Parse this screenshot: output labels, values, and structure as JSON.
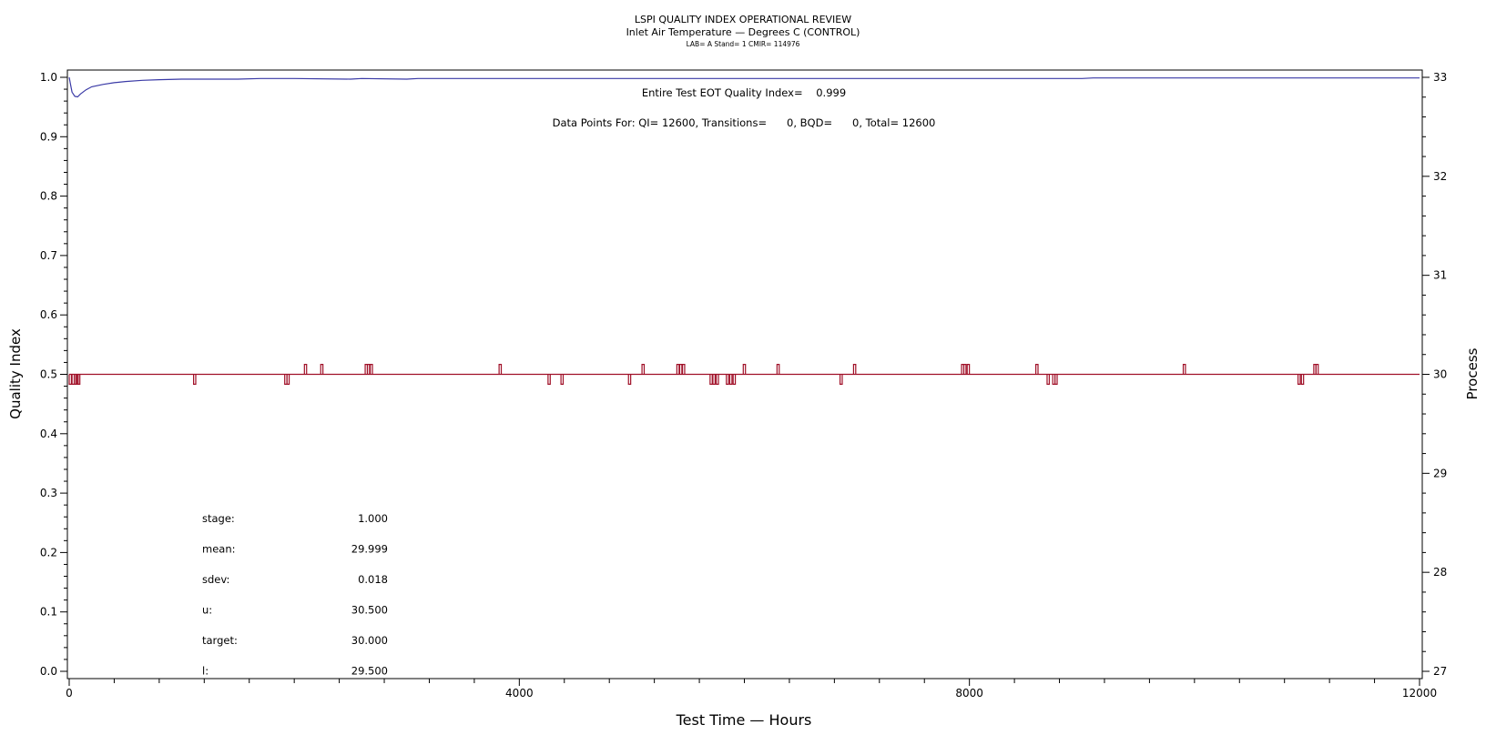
{
  "header": {
    "title": "LSPI QUALITY INDEX OPERATIONAL REVIEW",
    "subtitle": "Inlet Air Temperature — Degrees C (CONTROL)",
    "subsub": "LAB= A Stand= 1 CMIR= 114976"
  },
  "annotations": {
    "eot": "Entire Test EOT Quality Index=    0.999",
    "points": "Data Points For: QI= 12600, Transitions=      0, BQD=      0, Total= 12600"
  },
  "stats": [
    {
      "label": "stage:",
      "value": "1.000"
    },
    {
      "label": "mean:",
      "value": "29.999"
    },
    {
      "label": "sdev:",
      "value": "0.018"
    },
    {
      "label": "u:",
      "value": "30.500"
    },
    {
      "label": "target:",
      "value": "30.000"
    },
    {
      "label": "l:",
      "value": "29.500"
    }
  ],
  "colors": {
    "quality_index": "#3a3aa6",
    "process": "#a01028"
  },
  "chart_data": {
    "type": "line",
    "xlabel": "Test Time — Hours",
    "ylabel": "Quality Index",
    "y2label": "Process",
    "xlim": [
      0,
      12000
    ],
    "ylim": [
      0,
      1
    ],
    "y2lim": [
      27,
      33
    ],
    "xticks": [
      0,
      4000,
      8000,
      12000
    ],
    "yticks": [
      0.0,
      0.1,
      0.2,
      0.3,
      0.4,
      0.5,
      0.6,
      0.7,
      0.8,
      0.9,
      1.0
    ],
    "y2ticks": [
      27,
      28,
      29,
      30,
      31,
      32,
      33
    ],
    "series": [
      {
        "name": "Quality Index",
        "axis": "left",
        "x": [
          0,
          10,
          25,
          50,
          75,
          100,
          150,
          200,
          300,
          400,
          500,
          650,
          800,
          1000,
          1500,
          1700,
          2000,
          2500,
          2600,
          3000,
          3100,
          5000,
          9000,
          9100,
          12000
        ],
        "y": [
          1.0,
          0.99,
          0.975,
          0.968,
          0.967,
          0.972,
          0.979,
          0.984,
          0.988,
          0.991,
          0.993,
          0.995,
          0.996,
          0.997,
          0.997,
          0.998,
          0.998,
          0.997,
          0.998,
          0.997,
          0.998,
          0.998,
          0.998,
          0.999,
          0.999
        ]
      },
      {
        "name": "Process",
        "axis": "right",
        "baseline": 30.0,
        "excursions": [
          {
            "x": 10,
            "y": 29.9
          },
          {
            "x": 35,
            "y": 29.9
          },
          {
            "x": 55,
            "y": 29.9
          },
          {
            "x": 70,
            "y": 29.9
          },
          {
            "x": 85,
            "y": 29.9
          },
          {
            "x": 1115,
            "y": 29.9
          },
          {
            "x": 1925,
            "y": 29.9
          },
          {
            "x": 1945,
            "y": 29.9
          },
          {
            "x": 2100,
            "y": 30.1
          },
          {
            "x": 2245,
            "y": 30.1
          },
          {
            "x": 2640,
            "y": 30.1
          },
          {
            "x": 2660,
            "y": 30.1
          },
          {
            "x": 2685,
            "y": 30.1
          },
          {
            "x": 3830,
            "y": 30.1
          },
          {
            "x": 4265,
            "y": 29.9
          },
          {
            "x": 4380,
            "y": 29.9
          },
          {
            "x": 4980,
            "y": 29.9
          },
          {
            "x": 5100,
            "y": 30.1
          },
          {
            "x": 5410,
            "y": 30.1
          },
          {
            "x": 5435,
            "y": 30.1
          },
          {
            "x": 5460,
            "y": 30.1
          },
          {
            "x": 5705,
            "y": 29.9
          },
          {
            "x": 5730,
            "y": 29.9
          },
          {
            "x": 5760,
            "y": 29.9
          },
          {
            "x": 5850,
            "y": 29.9
          },
          {
            "x": 5880,
            "y": 29.9
          },
          {
            "x": 5910,
            "y": 29.9
          },
          {
            "x": 6000,
            "y": 30.1
          },
          {
            "x": 6300,
            "y": 30.1
          },
          {
            "x": 6860,
            "y": 29.9
          },
          {
            "x": 6980,
            "y": 30.1
          },
          {
            "x": 7940,
            "y": 30.1
          },
          {
            "x": 7960,
            "y": 30.1
          },
          {
            "x": 7990,
            "y": 30.1
          },
          {
            "x": 8600,
            "y": 30.1
          },
          {
            "x": 8700,
            "y": 29.9
          },
          {
            "x": 8750,
            "y": 29.9
          },
          {
            "x": 8770,
            "y": 29.9
          },
          {
            "x": 9910,
            "y": 30.1
          },
          {
            "x": 10930,
            "y": 29.9
          },
          {
            "x": 10960,
            "y": 29.9
          },
          {
            "x": 11070,
            "y": 30.1
          },
          {
            "x": 11090,
            "y": 30.1
          }
        ]
      }
    ],
    "grid": false
  }
}
